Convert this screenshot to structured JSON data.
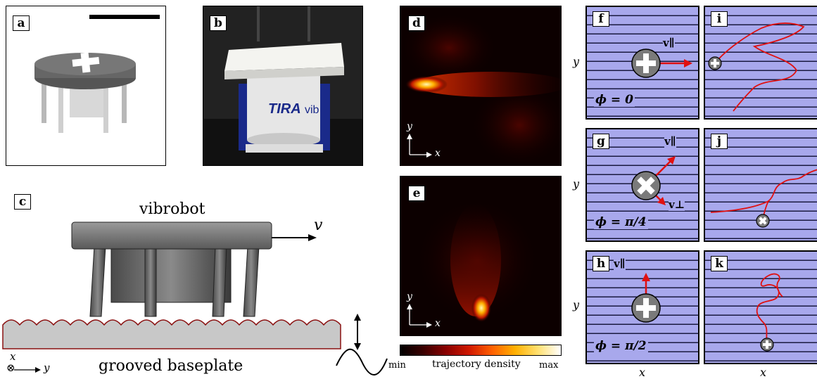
{
  "panel_labels": {
    "a": "a",
    "b": "b",
    "c": "c",
    "d": "d",
    "e": "e",
    "f": "f",
    "g": "g",
    "h": "h",
    "i": "i",
    "j": "j",
    "k": "k"
  },
  "photo_b": {
    "brand_text": "TIRA",
    "brand_suffix": "vib"
  },
  "diagram_c": {
    "robot_label": "vibrobot",
    "velocity_label": "v",
    "baseplate_label": "grooved baseplate",
    "axis_x": "x",
    "axis_y": "y",
    "axis_symbol": "⊗"
  },
  "heatmaps": {
    "axis_x": "x",
    "axis_y": "y",
    "colorbar_min": "min",
    "colorbar_label": "trajectory density",
    "colorbar_max": "max"
  },
  "schematics": {
    "y_label": "y",
    "x_label": "x",
    "f_phi": "ϕ = 0",
    "g_phi": "ϕ = π/4",
    "h_phi": "ϕ = π/2",
    "v_par": "v∥",
    "v_perp": "v⊥"
  },
  "colors": {
    "stripe_bg": "#a8a8ec",
    "stripe_line": "#1a1a40",
    "trajectory": "#e01010",
    "arrow": "#e01010"
  }
}
